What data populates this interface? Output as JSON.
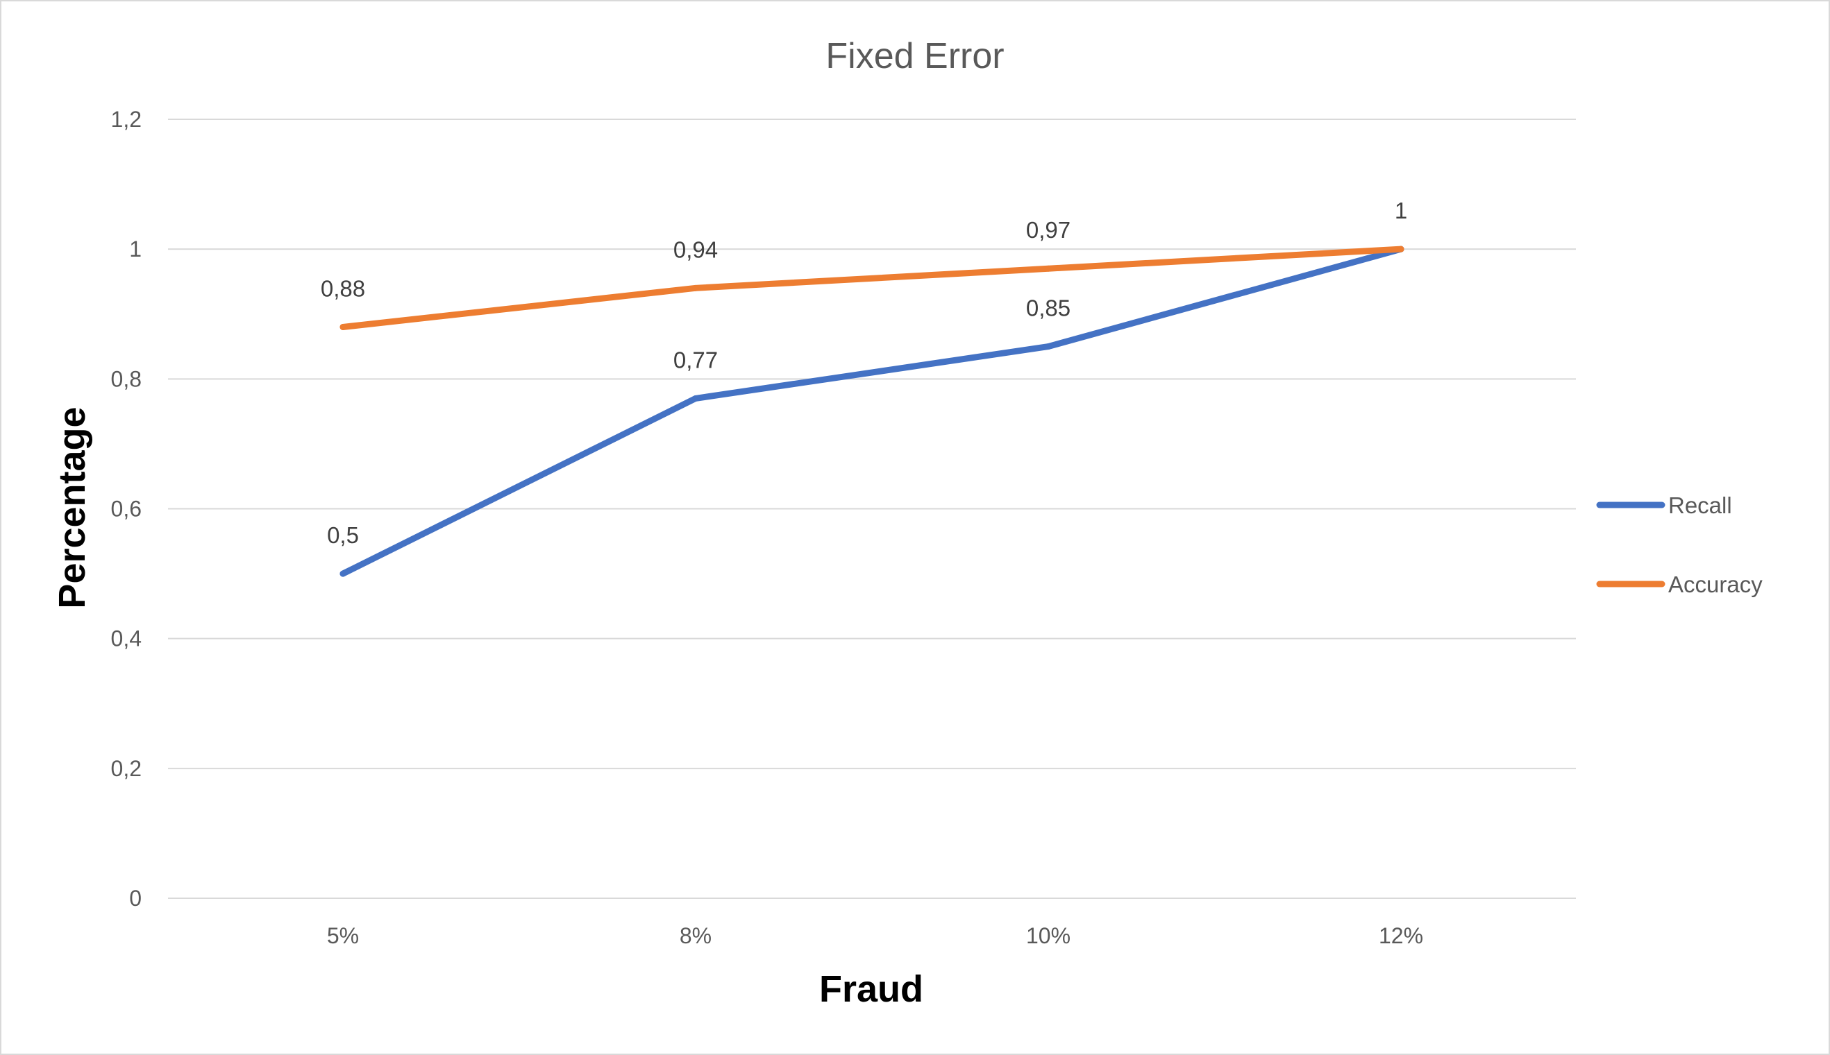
{
  "chart_data": {
    "type": "line",
    "title": "Fixed Error",
    "xlabel": "Fraud",
    "ylabel": "Percentage",
    "categories": [
      "5%",
      "8%",
      "10%",
      "12%"
    ],
    "ylim": [
      0,
      1.2
    ],
    "yticks": [
      {
        "value": 0,
        "label": "0"
      },
      {
        "value": 0.2,
        "label": "0,2"
      },
      {
        "value": 0.4,
        "label": "0,4"
      },
      {
        "value": 0.6,
        "label": "0,6"
      },
      {
        "value": 0.8,
        "label": "0,8"
      },
      {
        "value": 1.0,
        "label": "1"
      },
      {
        "value": 1.2,
        "label": "1,2"
      }
    ],
    "grid": true,
    "legend_position": "right",
    "series": [
      {
        "name": "Recall",
        "color": "#4472c4",
        "values": [
          0.5,
          0.77,
          0.85,
          1.0
        ],
        "labels": [
          "0,5",
          "0,77",
          "0,85",
          "1"
        ],
        "show_labels": [
          true,
          true,
          true,
          false
        ]
      },
      {
        "name": "Accuracy",
        "color": "#ed7d31",
        "values": [
          0.88,
          0.94,
          0.97,
          1.0
        ],
        "labels": [
          "0,88",
          "0,94",
          "0,97",
          "1"
        ],
        "show_labels": [
          true,
          true,
          true,
          true
        ]
      }
    ]
  }
}
